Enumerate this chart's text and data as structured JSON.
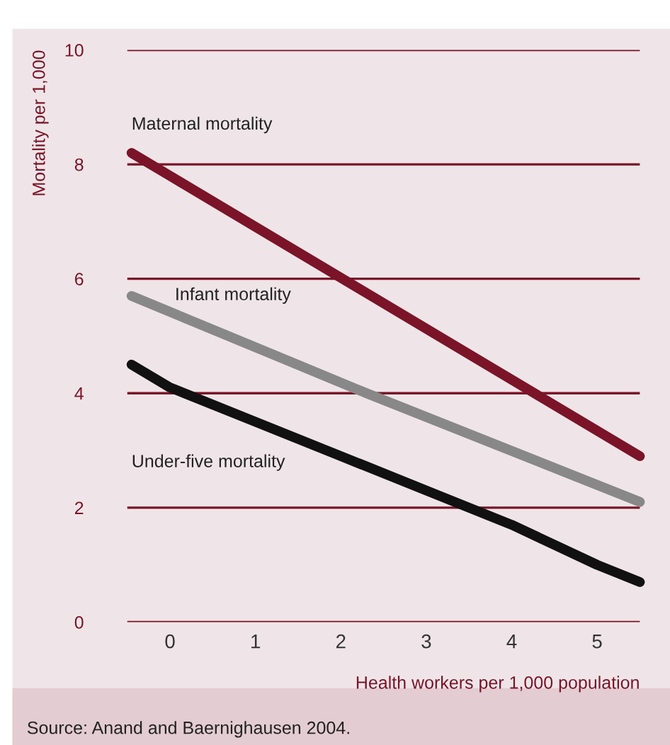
{
  "chart_data": {
    "type": "line",
    "xlabel": "Health workers per 1,000 population",
    "ylabel": "Mortality per 1,000",
    "xlim": [
      -0.5,
      5.5
    ],
    "xticks": [
      0,
      1,
      2,
      3,
      4,
      5
    ],
    "ylim": [
      0,
      10
    ],
    "yticks": [
      0,
      2,
      4,
      6,
      8,
      10
    ],
    "grid": "y",
    "legend": false,
    "marker": "none",
    "line_style": "solid",
    "series": [
      {
        "name": "Maternal mortality",
        "color": "#7b1428",
        "x": [
          -0.45,
          5.5
        ],
        "values": [
          8.2,
          2.9
        ]
      },
      {
        "name": "Infant mortality",
        "color": "#888888",
        "x": [
          -0.45,
          2.3,
          5.5
        ],
        "values": [
          5.7,
          4.0,
          2.1
        ]
      },
      {
        "name": "Under-five mortality",
        "color": "#111111",
        "x": [
          -0.45,
          0,
          1,
          2,
          3,
          4,
          5,
          5.5
        ],
        "values": [
          4.5,
          4.1,
          3.5,
          2.9,
          2.3,
          1.7,
          1.0,
          0.7
        ]
      }
    ],
    "annotations": [
      "Source: Anand and Baernighausen 2004."
    ]
  }
}
